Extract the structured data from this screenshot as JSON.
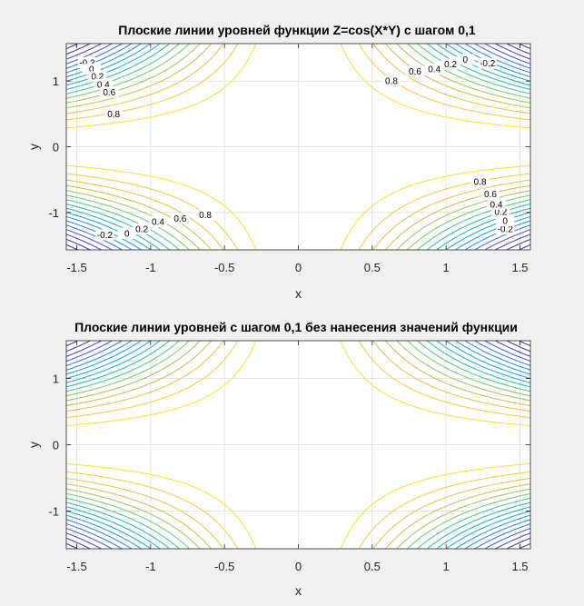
{
  "chart_data": [
    {
      "type": "contour",
      "title": "Плоские линии уровней функции Z=cos(X*Y) с шагом 0,1",
      "function": "cos(x*y)",
      "xlabel": "x",
      "ylabel": "y",
      "xlim": [
        -1.5708,
        1.5708
      ],
      "ylim": [
        -1.5708,
        1.5708
      ],
      "xticks": [
        -1.5,
        -1,
        -0.5,
        0,
        0.5,
        1,
        1.5
      ],
      "xtick_labels": [
        "-1.5",
        "-1",
        "-0.5",
        "0",
        "0.5",
        "1",
        "1.5"
      ],
      "yticks": [
        -1,
        0,
        1
      ],
      "ytick_labels": [
        "-1",
        "0",
        "1"
      ],
      "level_step": 0.1,
      "levels": [
        -0.7,
        -0.6,
        -0.5,
        -0.4,
        -0.3,
        -0.2,
        -0.1,
        0,
        0.1,
        0.2,
        0.3,
        0.4,
        0.5,
        0.6,
        0.7,
        0.8,
        0.9
      ],
      "colormap": "parula",
      "grid": true,
      "contour_labels": [
        {
          "text": "-0.2",
          "level": -0.2
        },
        {
          "text": "0",
          "level": 0
        },
        {
          "text": "0.2",
          "level": 0.2
        },
        {
          "text": "0.4",
          "level": 0.4
        },
        {
          "text": "0.6",
          "level": 0.6
        },
        {
          "text": "0.8",
          "level": 0.8
        }
      ]
    },
    {
      "type": "contour",
      "title": "Плоские линии уровней с шагом 0,1 без нанесения значений функции",
      "function": "cos(x*y)",
      "xlabel": "x",
      "ylabel": "y",
      "xlim": [
        -1.5708,
        1.5708
      ],
      "ylim": [
        -1.5708,
        1.5708
      ],
      "xticks": [
        -1.5,
        -1,
        -0.5,
        0,
        0.5,
        1,
        1.5
      ],
      "xtick_labels": [
        "-1.5",
        "-1",
        "-0.5",
        "0",
        "0.5",
        "1",
        "1.5"
      ],
      "yticks": [
        -1,
        0,
        1
      ],
      "ytick_labels": [
        "-1",
        "0",
        "1"
      ],
      "level_step": 0.1,
      "levels": [
        -0.7,
        -0.6,
        -0.5,
        -0.4,
        -0.3,
        -0.2,
        -0.1,
        0,
        0.1,
        0.2,
        0.3,
        0.4,
        0.5,
        0.6,
        0.7,
        0.8,
        0.9
      ],
      "colormap": "parula",
      "grid": true,
      "contour_labels": []
    }
  ]
}
